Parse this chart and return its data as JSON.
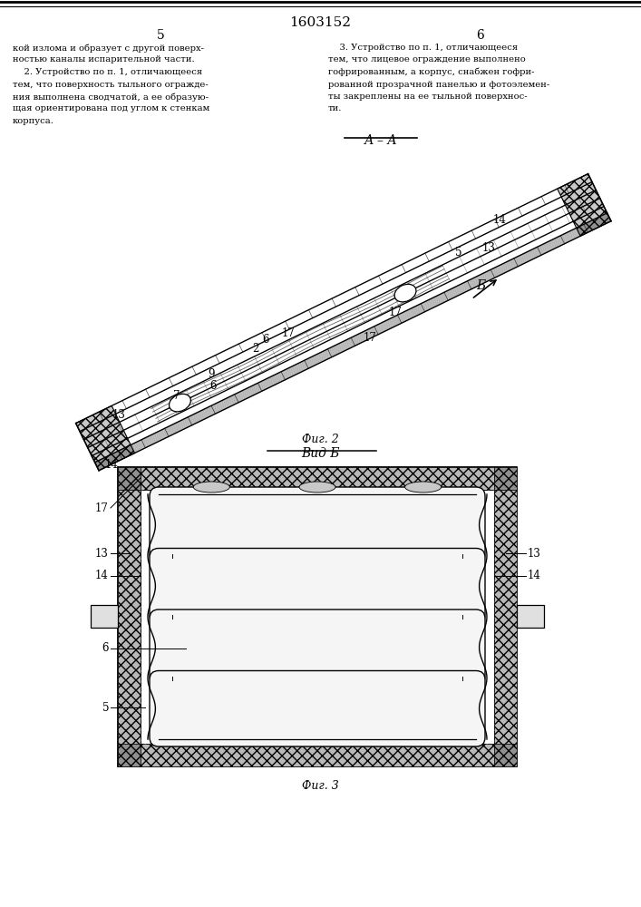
{
  "page_title": "1603152",
  "col_left_num": "5",
  "col_right_num": "6",
  "background_color": "#ffffff",
  "line_color": "#000000",
  "text_color": "#000000",
  "fig_width": 7.07,
  "fig_height": 10.0,
  "text_left_col": [
    "кой излома и образует с другой поверх-",
    "ностью каналы испарительной части.",
    "    2. Устройство по п. 1, отличающееся",
    "тем, что поверхность тыльного огражде-",
    "ния выполнена сводчатой, а ее образую-",
    "щая ориентирована под углом к стенкам",
    "корпуса."
  ],
  "text_right_col": [
    "    3. Устройство по п. 1, отличающееся",
    "тем, что лицевое ограждение выполнено",
    "гофрированным, а корпус, снабжен гофри-",
    "рованной прозрачной панелью и фотоэлемен-",
    "ты закреплены на ее тыльной поверхнос-",
    "ти."
  ],
  "section_label_AA": "А – А",
  "fig2_caption": "Фиг. 2",
  "fig3_title": "Вид Б",
  "fig3_caption": "Фиг. 3"
}
